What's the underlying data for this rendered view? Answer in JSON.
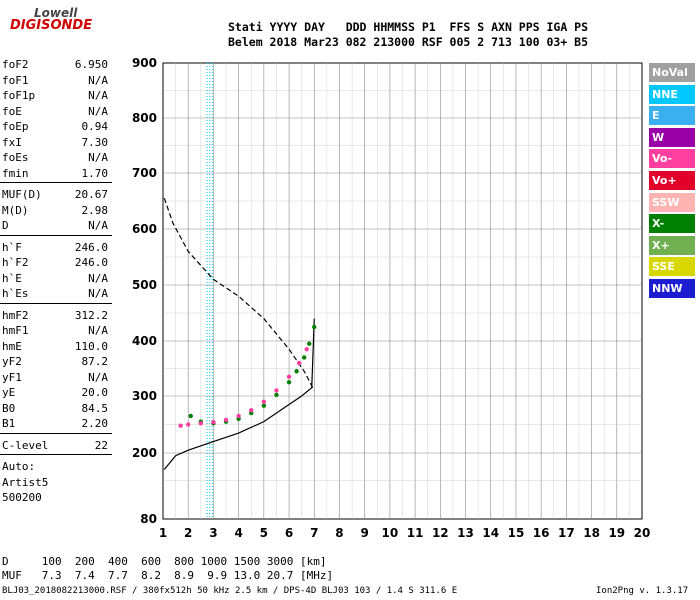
{
  "logo": {
    "line1": "Lowell",
    "line2": "DIGISONDE"
  },
  "header": {
    "line1": "Stati YYYY DAY   DDD HHMMSS P1  FFS S AXN PPS IGA PS",
    "line2": "Belem 2018 Mar23 082 213000 RSF 005 2 713 100 03+ B5"
  },
  "params_group1": [
    {
      "name": "foF2",
      "value": "6.950"
    },
    {
      "name": "foF1",
      "value": "N/A"
    },
    {
      "name": "foF1p",
      "value": "N/A"
    },
    {
      "name": "foE",
      "value": "N/A"
    },
    {
      "name": "foEp",
      "value": "0.94"
    },
    {
      "name": "fxI",
      "value": "7.30"
    },
    {
      "name": "foEs",
      "value": "N/A"
    },
    {
      "name": "fmin",
      "value": "1.70"
    }
  ],
  "params_group2": [
    {
      "name": "MUF(D)",
      "value": "20.67"
    },
    {
      "name": "M(D)",
      "value": "2.98"
    },
    {
      "name": "D",
      "value": "N/A"
    }
  ],
  "params_group3": [
    {
      "name": "h`F",
      "value": "246.0"
    },
    {
      "name": "h`F2",
      "value": "246.0"
    },
    {
      "name": "h`E",
      "value": "N/A"
    },
    {
      "name": "h`Es",
      "value": "N/A"
    }
  ],
  "params_group4": [
    {
      "name": "hmF2",
      "value": "312.2"
    },
    {
      "name": "hmF1",
      "value": "N/A"
    },
    {
      "name": "hmE",
      "value": "110.0"
    },
    {
      "name": "yF2",
      "value": "87.2"
    },
    {
      "name": "yF1",
      "value": "N/A"
    },
    {
      "name": "yE",
      "value": "20.0"
    },
    {
      "name": "B0",
      "value": "84.5"
    },
    {
      "name": "B1",
      "value": "2.20"
    }
  ],
  "c_level": {
    "name": "C-level",
    "value": "22"
  },
  "auto_block": [
    "Auto:",
    "Artist5",
    "500200"
  ],
  "legend": [
    {
      "label": "NoVal",
      "color": "#a0a0a0"
    },
    {
      "label": "NNE",
      "color": "#00c8ff"
    },
    {
      "label": "E",
      "color": "#3ab0f0"
    },
    {
      "label": "W",
      "color": "#9a00a8"
    },
    {
      "label": "Vo-",
      "color": "#ff3fa0"
    },
    {
      "label": "Vo+",
      "color": "#e0002a"
    },
    {
      "label": "SSW",
      "color": "#ffb4b4"
    },
    {
      "label": "X-",
      "color": "#008000"
    },
    {
      "label": "X+",
      "color": "#70b050"
    },
    {
      "label": "SSE",
      "color": "#d8d800"
    },
    {
      "label": "NNW",
      "color": "#1c1cd0"
    }
  ],
  "footer": {
    "d_row": "D     100  200  400  600  800 1000 1500 3000 [km]",
    "muf_row": "MUF   7.3  7.4  7.7  8.2  8.9  9.9 13.0 20.7 [MHz]",
    "info_left": "BLJ03_2018082213000.RSF / 380fx512h 50 kHz 2.5 km / DPS-4D BLJ03 103 / 1.4 S 311.6 E",
    "info_right": "Ion2Png v. 1.3.17"
  },
  "chart_data": {
    "type": "scatter",
    "xlabel": "",
    "ylabel": "",
    "xlim": [
      1,
      20
    ],
    "ylim": [
      80,
      900
    ],
    "x_ticks": [
      1,
      2,
      3,
      4,
      5,
      6,
      7,
      8,
      9,
      10,
      11,
      12,
      13,
      14,
      15,
      16,
      17,
      18,
      19,
      20
    ],
    "y_ticks": [
      80,
      200,
      300,
      400,
      500,
      600,
      700,
      800,
      900
    ],
    "grid": true,
    "series": [
      {
        "name": "X-",
        "color": "#008000",
        "x": [
          2.1,
          2.5,
          3.0,
          3.5,
          4.0,
          4.5,
          5.0,
          5.5,
          6.0,
          6.3,
          6.6,
          6.8,
          7.0
        ],
        "y": [
          265,
          255,
          252,
          255,
          260,
          270,
          283,
          302,
          325,
          345,
          370,
          395,
          425
        ]
      },
      {
        "name": "Vo-",
        "color": "#ff3fa0",
        "x": [
          1.7,
          2.0,
          2.5,
          3.0,
          3.5,
          4.0,
          4.5,
          5.0,
          5.5,
          6.0,
          6.4,
          6.7
        ],
        "y": [
          248,
          250,
          252,
          254,
          258,
          265,
          275,
          290,
          310,
          335,
          360,
          385
        ]
      }
    ],
    "lines": [
      {
        "label": "profile-solid",
        "style": "solid",
        "x": [
          1.05,
          1.5,
          2.0,
          3.0,
          4.0,
          5.0,
          6.0,
          6.5,
          6.9,
          7.0
        ],
        "y": [
          170,
          195,
          205,
          220,
          235,
          255,
          285,
          300,
          315,
          440
        ]
      },
      {
        "label": "profile-dashed",
        "style": "dashed",
        "x": [
          1.05,
          1.4,
          2.0,
          3.0,
          4.0,
          5.0,
          6.0,
          6.6,
          7.0
        ],
        "y": [
          655,
          610,
          560,
          510,
          480,
          440,
          385,
          345,
          310
        ]
      }
    ]
  }
}
